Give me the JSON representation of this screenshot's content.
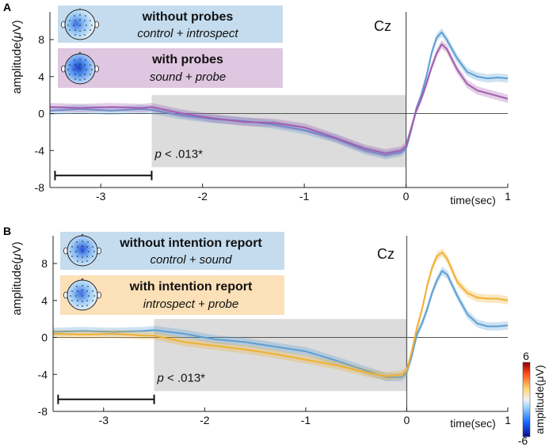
{
  "figure": {
    "colorbar": {
      "max_label": "6",
      "min_label": "-6",
      "label": "amplitude(μV)"
    }
  },
  "chart_data": [
    {
      "type": "line",
      "panel_label": "A",
      "channel": "Cz",
      "xlabel": "time(sec)",
      "ylabel": "amplitude(μV)",
      "xlim": [
        -3.5,
        1
      ],
      "ylim": [
        -8,
        11
      ],
      "xticks": [
        -3,
        -2,
        -1,
        0,
        1
      ],
      "yticks": [
        -8,
        -4,
        0,
        4,
        8
      ],
      "xtick_labels": [
        "-3",
        "-2",
        "-1",
        "0",
        "1"
      ],
      "ytick_labels": [
        "-8",
        "-4",
        "0",
        "4",
        "8"
      ],
      "shaded_region": {
        "x": [
          -2.5,
          0
        ],
        "y": [
          -5.8,
          2
        ],
        "label": "p < .013*",
        "color": "#dcdcdc"
      },
      "baseline_bar": {
        "x": [
          -3.45,
          -2.5
        ],
        "y": -6.7
      },
      "legend": [
        {
          "title": "without probes",
          "subtitle": "control + introspect",
          "box_color": "#c4dcee",
          "line_color": "#5d9fd3"
        },
        {
          "title": "with probes",
          "subtitle": "sound + probe",
          "box_color": "#dfc6e1",
          "line_color": "#a15eb0"
        }
      ],
      "series": [
        {
          "name": "without probes",
          "color": "#5d9fd3",
          "x": [
            -3.5,
            -3.2,
            -2.9,
            -2.6,
            -2.5,
            -2.2,
            -1.9,
            -1.6,
            -1.3,
            -1.0,
            -0.7,
            -0.4,
            -0.2,
            -0.05,
            0.0,
            0.05,
            0.1,
            0.15,
            0.2,
            0.25,
            0.3,
            0.35,
            0.4,
            0.5,
            0.6,
            0.7,
            0.8,
            0.9,
            1.0
          ],
          "y": [
            0.3,
            0.5,
            0.3,
            0.5,
            0.4,
            -0.2,
            -0.6,
            -0.8,
            -1.2,
            -1.8,
            -2.7,
            -4.0,
            -4.5,
            -4.2,
            -3.8,
            -1.8,
            0.5,
            2.0,
            4.0,
            6.5,
            8.2,
            8.8,
            8.0,
            6.0,
            4.5,
            4.0,
            3.8,
            3.9,
            3.8
          ]
        },
        {
          "name": "with probes",
          "color": "#a15eb0",
          "x": [
            -3.5,
            -3.2,
            -2.9,
            -2.6,
            -2.5,
            -2.2,
            -1.9,
            -1.6,
            -1.3,
            -1.0,
            -0.7,
            -0.4,
            -0.2,
            -0.05,
            0.0,
            0.05,
            0.1,
            0.15,
            0.2,
            0.25,
            0.3,
            0.35,
            0.4,
            0.5,
            0.6,
            0.7,
            0.8,
            0.9,
            1.0
          ],
          "y": [
            0.7,
            0.6,
            0.7,
            0.6,
            0.7,
            0.0,
            -0.5,
            -0.9,
            -1.0,
            -1.5,
            -2.6,
            -3.8,
            -4.3,
            -4.0,
            -3.5,
            -1.6,
            0.3,
            1.6,
            3.2,
            5.0,
            6.5,
            7.5,
            7.0,
            4.8,
            3.2,
            2.5,
            2.2,
            1.9,
            1.6
          ]
        }
      ]
    },
    {
      "type": "line",
      "panel_label": "B",
      "channel": "Cz",
      "xlabel": "time(sec)",
      "ylabel": "amplitude(μV)",
      "xlim": [
        -3.5,
        1
      ],
      "ylim": [
        -8,
        11
      ],
      "xticks": [
        -3,
        -2,
        -1,
        0,
        1
      ],
      "yticks": [
        -8,
        -4,
        0,
        4,
        8
      ],
      "xtick_labels": [
        "-3",
        "-2",
        "-1",
        "0",
        "1"
      ],
      "ytick_labels": [
        "-8",
        "-4",
        "0",
        "4",
        "8"
      ],
      "shaded_region": {
        "x": [
          -2.5,
          0
        ],
        "y": [
          -5.8,
          2
        ],
        "label": "p < .013*",
        "color": "#dcdcdc"
      },
      "baseline_bar": {
        "x": [
          -3.45,
          -2.5
        ],
        "y": -6.7
      },
      "legend": [
        {
          "title": "without intention report",
          "subtitle": "control + sound",
          "box_color": "#c4dcee",
          "line_color": "#5d9fd3"
        },
        {
          "title": "with intention report",
          "subtitle": "introspect + probe",
          "box_color": "#fbe0b8",
          "line_color": "#f0b132"
        }
      ],
      "series": [
        {
          "name": "without intention report",
          "color": "#5d9fd3",
          "x": [
            -3.5,
            -3.2,
            -2.9,
            -2.6,
            -2.5,
            -2.2,
            -1.9,
            -1.6,
            -1.3,
            -1.0,
            -0.7,
            -0.4,
            -0.2,
            -0.05,
            0.0,
            0.05,
            0.1,
            0.15,
            0.2,
            0.25,
            0.3,
            0.35,
            0.4,
            0.5,
            0.6,
            0.7,
            0.8,
            0.9,
            1.0
          ],
          "y": [
            0.6,
            0.7,
            0.6,
            0.7,
            0.8,
            0.4,
            -0.2,
            -0.5,
            -1.0,
            -1.5,
            -2.5,
            -3.6,
            -4.3,
            -4.3,
            -3.8,
            -2.0,
            0.3,
            1.5,
            3.0,
            4.8,
            6.2,
            7.2,
            6.8,
            4.5,
            2.5,
            1.5,
            1.2,
            1.2,
            1.3
          ]
        },
        {
          "name": "with intention report",
          "color": "#f0b132",
          "x": [
            -3.5,
            -3.2,
            -2.9,
            -2.6,
            -2.5,
            -2.2,
            -1.9,
            -1.6,
            -1.3,
            -1.0,
            -0.7,
            -0.4,
            -0.2,
            -0.05,
            0.0,
            0.05,
            0.1,
            0.15,
            0.2,
            0.25,
            0.3,
            0.35,
            0.4,
            0.5,
            0.6,
            0.7,
            0.8,
            0.9,
            1.0
          ],
          "y": [
            0.4,
            0.3,
            0.4,
            0.2,
            0.2,
            -0.5,
            -0.9,
            -1.3,
            -1.8,
            -2.4,
            -3.0,
            -3.8,
            -4.2,
            -4.0,
            -3.6,
            -1.5,
            1.0,
            3.0,
            5.5,
            7.5,
            8.8,
            9.2,
            8.5,
            6.0,
            4.8,
            4.3,
            4.2,
            4.2,
            4.0
          ]
        }
      ]
    }
  ]
}
